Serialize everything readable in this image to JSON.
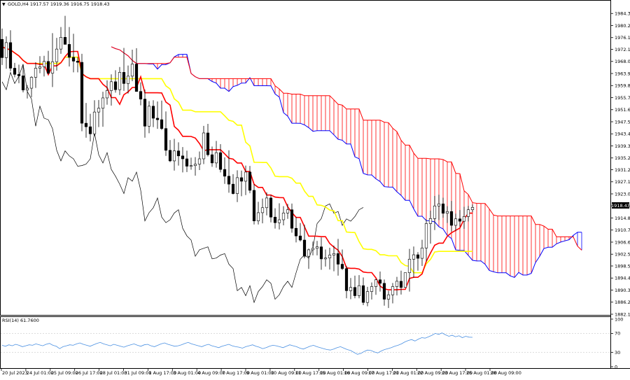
{
  "header": {
    "symbol_line": "GOLD,H4  1917.57 1919.36 1916.75 1918.43",
    "rsi_label": "RSI(14) 61.7600"
  },
  "colors": {
    "tenkan": "#ff0000",
    "kijun": "#ffff00",
    "chikou": "#000000",
    "cloud_bear": "#ff0000",
    "cloud_bull": "#0000ff",
    "rsi_line": "#4a90e2",
    "candle": "#000000",
    "axis": "#000000",
    "grid": "#c8c8c8"
  },
  "chart_data": {
    "type": "candlestick",
    "symbol": "GOLD",
    "timeframe": "H4",
    "last_price": "1918.43",
    "price_axis": {
      "ylim": [
        1882.1,
        1986.5
      ],
      "ticks": [
        "1984.30",
        "1980.20",
        "1976.10",
        "1972.10",
        "1968.00",
        "1963.90",
        "1959.80",
        "1955.70",
        "1951.60",
        "1947.50",
        "1943.40",
        "1939.30",
        "1935.20",
        "1931.20",
        "1927.10",
        "1923.00",
        "1918.90",
        "1914.80",
        "1910.70",
        "1906.60",
        "1902.50",
        "1898.50",
        "1894.40",
        "1890.30",
        "1886.20",
        "1882.10"
      ]
    },
    "time_axis": {
      "ticks": [
        "20 Jul 2023",
        "24 Jul 01:00",
        "25 Jul 09:00",
        "26 Jul 17:00",
        "28 Jul 01:00",
        "31 Jul 09:00",
        "1 Aug 17:00",
        "3 Aug 01:00",
        "4 Aug 09:00",
        "7 Aug 17:00",
        "9 Aug 01:00",
        "10 Aug 09:00",
        "11 Aug 17:00",
        "15 Aug 01:00",
        "16 Aug 09:00",
        "17 Aug 17:00",
        "21 Aug 01:00",
        "22 Aug 09:00",
        "23 Aug 17:00",
        "25 Aug 01:00",
        "28 Aug 09:00"
      ]
    },
    "rsi": {
      "period": 14,
      "value": 61.76,
      "ylim": [
        0,
        100
      ],
      "ticks": [
        "100",
        "70",
        "30",
        "0"
      ],
      "values": [
        45,
        43,
        46,
        44,
        47,
        45,
        42,
        44,
        46,
        45,
        48,
        46,
        44,
        47,
        49,
        45,
        43,
        38,
        42,
        44,
        46,
        45,
        48,
        50,
        47,
        45,
        43,
        46,
        49,
        51,
        48,
        46,
        44,
        47,
        45,
        43,
        41,
        44,
        46,
        48,
        45,
        43,
        46,
        47,
        44,
        42,
        45,
        48,
        50,
        47,
        45,
        43,
        44,
        46,
        49,
        51,
        48,
        46,
        44,
        42,
        45,
        47,
        44,
        42,
        40,
        43,
        45,
        47,
        44,
        42,
        41,
        39,
        42,
        44,
        46,
        43,
        41,
        38,
        40,
        43,
        45,
        44,
        42,
        40,
        43,
        46,
        44,
        42,
        39,
        37,
        40,
        43,
        45,
        42,
        40,
        38,
        36,
        35,
        37,
        40,
        42,
        39,
        36,
        34,
        30,
        26,
        28,
        32,
        35,
        34,
        31,
        29,
        33,
        36,
        38,
        40,
        43,
        45,
        48,
        52,
        55,
        57,
        54,
        58,
        61,
        60,
        63,
        66,
        70,
        68,
        71,
        67,
        64,
        66,
        63,
        65,
        61,
        64,
        62,
        61.76
      ]
    },
    "candles": [
      [
        1975.5,
        1979.2,
        1966.8,
        1969.3
      ],
      [
        1969.3,
        1976.5,
        1965.5,
        1974.4
      ],
      [
        1974.4,
        1978.6,
        1964.7,
        1965.7
      ],
      [
        1965.7,
        1967.5,
        1962.6,
        1963.6
      ],
      [
        1963.6,
        1966.9,
        1960.6,
        1963.1
      ],
      [
        1963.1,
        1966.9,
        1957.5,
        1958.3
      ],
      [
        1958.3,
        1960.0,
        1955.4,
        1958.9
      ],
      [
        1958.9,
        1963.0,
        1955.8,
        1962.6
      ],
      [
        1962.6,
        1967.7,
        1959.0,
        1965.7
      ],
      [
        1965.7,
        1969.8,
        1964.0,
        1966.2
      ],
      [
        1966.2,
        1969.9,
        1962.9,
        1968.0
      ],
      [
        1968.0,
        1971.6,
        1963.7,
        1964.0
      ],
      [
        1964.0,
        1977.6,
        1959.3,
        1967.9
      ],
      [
        1967.9,
        1976.0,
        1964.9,
        1972.2
      ],
      [
        1972.2,
        1979.7,
        1970.6,
        1976.2
      ],
      [
        1976.2,
        1983.5,
        1973.8,
        1973.8
      ],
      [
        1973.8,
        1979.7,
        1966.3,
        1969.4
      ],
      [
        1969.4,
        1977.4,
        1964.3,
        1968.1
      ],
      [
        1968.1,
        1969.5,
        1964.3,
        1967.7
      ],
      [
        1967.7,
        1970.6,
        1944.3,
        1947.0
      ],
      [
        1947.0,
        1953.9,
        1942.1,
        1945.8
      ],
      [
        1945.8,
        1950.2,
        1940.8,
        1943.4
      ],
      [
        1943.4,
        1954.8,
        1942.7,
        1950.8
      ],
      [
        1950.8,
        1954.9,
        1945.7,
        1952.1
      ],
      [
        1952.1,
        1957.7,
        1945.8,
        1955.6
      ],
      [
        1955.6,
        1961.6,
        1953.3,
        1958.1
      ],
      [
        1958.1,
        1963.6,
        1953.0,
        1961.1
      ],
      [
        1961.1,
        1965.0,
        1957.4,
        1958.4
      ],
      [
        1958.4,
        1966.1,
        1956.6,
        1964.3
      ],
      [
        1964.3,
        1972.6,
        1958.0,
        1960.5
      ],
      [
        1960.5,
        1966.6,
        1957.1,
        1963.0
      ],
      [
        1963.0,
        1972.0,
        1961.3,
        1967.1
      ],
      [
        1967.1,
        1972.5,
        1957.8,
        1957.8
      ],
      [
        1957.8,
        1960.9,
        1953.1,
        1955.2
      ],
      [
        1955.2,
        1958.4,
        1942.1,
        1946.0
      ],
      [
        1946.0,
        1954.5,
        1943.6,
        1952.8
      ],
      [
        1952.8,
        1954.8,
        1945.7,
        1948.7
      ],
      [
        1948.7,
        1954.4,
        1945.1,
        1948.2
      ],
      [
        1948.2,
        1954.7,
        1944.7,
        1945.2
      ],
      [
        1945.2,
        1951.0,
        1935.9,
        1937.8
      ],
      [
        1937.8,
        1941.3,
        1933.8,
        1934.2
      ],
      [
        1934.2,
        1941.7,
        1930.9,
        1937.6
      ],
      [
        1937.6,
        1940.5,
        1932.6,
        1935.9
      ],
      [
        1935.9,
        1938.9,
        1930.3,
        1934.9
      ],
      [
        1934.9,
        1937.7,
        1930.4,
        1932.4
      ],
      [
        1932.4,
        1935.3,
        1931.2,
        1932.6
      ],
      [
        1932.6,
        1935.5,
        1929.2,
        1933.1
      ],
      [
        1933.1,
        1937.4,
        1931.1,
        1934.9
      ],
      [
        1934.9,
        1946.1,
        1933.1,
        1943.7
      ],
      [
        1943.7,
        1946.8,
        1935.7,
        1936.3
      ],
      [
        1936.3,
        1939.1,
        1932.2,
        1933.5
      ],
      [
        1933.5,
        1941.0,
        1931.9,
        1937.0
      ],
      [
        1937.0,
        1939.9,
        1930.3,
        1931.3
      ],
      [
        1931.3,
        1935.4,
        1926.4,
        1929.0
      ],
      [
        1929.0,
        1937.8,
        1923.4,
        1926.3
      ],
      [
        1926.3,
        1929.7,
        1922.8,
        1923.1
      ],
      [
        1923.1,
        1931.0,
        1920.2,
        1928.5
      ],
      [
        1928.5,
        1930.9,
        1922.2,
        1927.3
      ],
      [
        1927.3,
        1932.6,
        1922.6,
        1930.4
      ],
      [
        1930.4,
        1932.5,
        1923.2,
        1924.2
      ],
      [
        1924.2,
        1926.3,
        1912.6,
        1913.8
      ],
      [
        1913.8,
        1920.3,
        1912.6,
        1916.6
      ],
      [
        1916.6,
        1921.4,
        1913.0,
        1918.3
      ],
      [
        1918.3,
        1923.5,
        1915.7,
        1921.6
      ],
      [
        1921.6,
        1922.6,
        1913.3,
        1915.1
      ],
      [
        1915.1,
        1918.1,
        1911.2,
        1913.2
      ],
      [
        1913.2,
        1919.8,
        1910.9,
        1914.2
      ],
      [
        1914.2,
        1918.8,
        1912.3,
        1916.5
      ],
      [
        1916.5,
        1919.6,
        1914.5,
        1917.6
      ],
      [
        1917.6,
        1919.7,
        1909.8,
        1911.3
      ],
      [
        1911.3,
        1915.1,
        1906.5,
        1908.7
      ],
      [
        1908.7,
        1913.1,
        1906.8,
        1907.3
      ],
      [
        1907.3,
        1912.5,
        1901.1,
        1901.8
      ],
      [
        1901.8,
        1904.4,
        1897.5,
        1904.0
      ],
      [
        1904.0,
        1906.8,
        1902.1,
        1904.5
      ],
      [
        1904.5,
        1907.0,
        1902.1,
        1905.0
      ],
      [
        1905.0,
        1908.2,
        1897.2,
        1900.9
      ],
      [
        1900.9,
        1904.1,
        1898.3,
        1901.2
      ],
      [
        1901.2,
        1904.7,
        1897.3,
        1902.2
      ],
      [
        1902.2,
        1905.4,
        1896.7,
        1902.7
      ],
      [
        1902.7,
        1907.7,
        1895.2,
        1899.1
      ],
      [
        1899.1,
        1904.1,
        1897.1,
        1897.6
      ],
      [
        1897.6,
        1898.5,
        1887.5,
        1890.1
      ],
      [
        1890.1,
        1894.4,
        1887.2,
        1891.2
      ],
      [
        1891.2,
        1895.2,
        1887.5,
        1888.4
      ],
      [
        1888.4,
        1895.4,
        1887.5,
        1891.8
      ],
      [
        1891.8,
        1894.6,
        1885.2,
        1886.1
      ],
      [
        1886.1,
        1891.4,
        1884.8,
        1889.8
      ],
      [
        1889.8,
        1892.9,
        1887.1,
        1891.5
      ],
      [
        1891.5,
        1894.1,
        1888.7,
        1893.8
      ],
      [
        1893.8,
        1896.6,
        1889.8,
        1892.6
      ],
      [
        1892.6,
        1893.9,
        1885.0,
        1887.2
      ],
      [
        1887.2,
        1890.1,
        1884.2,
        1888.7
      ],
      [
        1888.7,
        1892.7,
        1885.8,
        1891.5
      ],
      [
        1891.5,
        1894.8,
        1888.5,
        1893.3
      ],
      [
        1893.3,
        1896.9,
        1888.8,
        1891.2
      ],
      [
        1891.2,
        1896.2,
        1891.1,
        1896.2
      ],
      [
        1896.2,
        1904.3,
        1889.8,
        1900.8
      ],
      [
        1900.8,
        1905.1,
        1894.5,
        1902.3
      ],
      [
        1902.3,
        1903.2,
        1896.9,
        1901.1
      ],
      [
        1901.1,
        1907.4,
        1898.5,
        1904.6
      ],
      [
        1904.6,
        1914.3,
        1900.1,
        1912.9
      ],
      [
        1912.9,
        1917.3,
        1906.1,
        1914.6
      ],
      [
        1914.6,
        1922.3,
        1910.7,
        1918.9
      ],
      [
        1918.9,
        1922.7,
        1914.1,
        1919.6
      ],
      [
        1919.6,
        1921.7,
        1914.9,
        1916.4
      ],
      [
        1916.4,
        1918.8,
        1913.1,
        1917.0
      ],
      [
        1917.0,
        1920.6,
        1910.2,
        1912.3
      ],
      [
        1912.3,
        1916.3,
        1910.3,
        1914.5
      ],
      [
        1914.5,
        1917.5,
        1911.9,
        1913.7
      ],
      [
        1913.7,
        1918.6,
        1911.1,
        1915.3
      ],
      [
        1915.3,
        1918.9,
        1913.6,
        1917.6
      ],
      [
        1917.6,
        1919.4,
        1916.8,
        1918.4
      ]
    ]
  }
}
